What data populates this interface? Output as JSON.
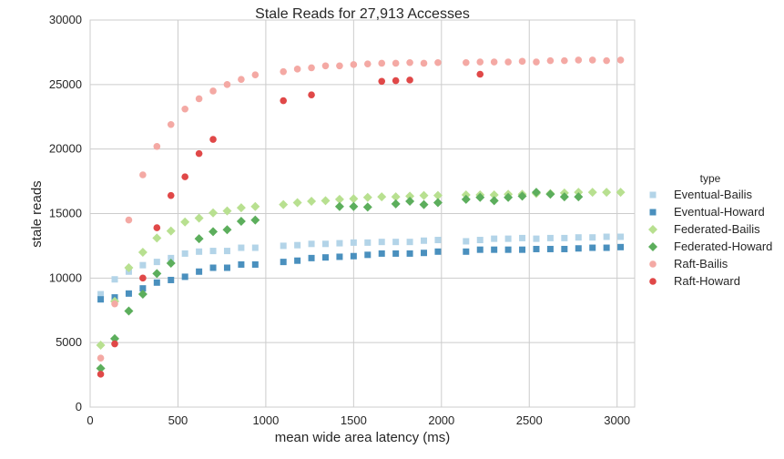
{
  "chart_data": {
    "type": "scatter",
    "title": "Stale Reads for 27,913 Accesses",
    "xlabel": "mean wide area latency (ms)",
    "ylabel": "stale reads",
    "xlim": [
      0,
      3100
    ],
    "ylim": [
      0,
      30000
    ],
    "x_ticks": [
      0,
      500,
      1000,
      1500,
      2000,
      2500,
      3000
    ],
    "y_ticks": [
      0,
      5000,
      10000,
      15000,
      20000,
      25000,
      30000
    ],
    "grid": true,
    "legend": {
      "title": "type",
      "placement": "right"
    },
    "series": [
      {
        "name": "Eventual-Bailis",
        "color": "#b3d4e8",
        "marker": "square",
        "points": [
          [
            60,
            8750
          ],
          [
            140,
            9900
          ],
          [
            220,
            10500
          ],
          [
            300,
            11000
          ],
          [
            380,
            11250
          ],
          [
            460,
            11550
          ],
          [
            540,
            11900
          ],
          [
            620,
            12050
          ],
          [
            700,
            12100
          ],
          [
            780,
            12100
          ],
          [
            860,
            12350
          ],
          [
            940,
            12350
          ],
          [
            1100,
            12500
          ],
          [
            1180,
            12550
          ],
          [
            1260,
            12650
          ],
          [
            1340,
            12650
          ],
          [
            1420,
            12700
          ],
          [
            1500,
            12750
          ],
          [
            1580,
            12750
          ],
          [
            1660,
            12800
          ],
          [
            1740,
            12800
          ],
          [
            1820,
            12800
          ],
          [
            1900,
            12900
          ],
          [
            1980,
            12950
          ],
          [
            2140,
            12850
          ],
          [
            2220,
            12950
          ],
          [
            2300,
            13050
          ],
          [
            2380,
            13050
          ],
          [
            2460,
            13100
          ],
          [
            2540,
            13050
          ],
          [
            2620,
            13100
          ],
          [
            2700,
            13100
          ],
          [
            2780,
            13150
          ],
          [
            2860,
            13150
          ],
          [
            2940,
            13200
          ],
          [
            3020,
            13200
          ]
        ]
      },
      {
        "name": "Eventual-Howard",
        "color": "#4a90be",
        "marker": "square",
        "points": [
          [
            60,
            8350
          ],
          [
            140,
            8500
          ],
          [
            220,
            8800
          ],
          [
            300,
            9200
          ],
          [
            380,
            9650
          ],
          [
            460,
            9850
          ],
          [
            540,
            10100
          ],
          [
            620,
            10500
          ],
          [
            700,
            10800
          ],
          [
            780,
            10800
          ],
          [
            860,
            11050
          ],
          [
            940,
            11050
          ],
          [
            1100,
            11250
          ],
          [
            1180,
            11350
          ],
          [
            1260,
            11550
          ],
          [
            1340,
            11600
          ],
          [
            1420,
            11650
          ],
          [
            1500,
            11700
          ],
          [
            1580,
            11800
          ],
          [
            1660,
            11900
          ],
          [
            1740,
            11900
          ],
          [
            1820,
            11900
          ],
          [
            1900,
            11950
          ],
          [
            1980,
            12050
          ],
          [
            2140,
            12050
          ],
          [
            2220,
            12200
          ],
          [
            2300,
            12200
          ],
          [
            2380,
            12200
          ],
          [
            2460,
            12200
          ],
          [
            2540,
            12250
          ],
          [
            2620,
            12250
          ],
          [
            2700,
            12250
          ],
          [
            2780,
            12300
          ],
          [
            2860,
            12350
          ],
          [
            2940,
            12350
          ],
          [
            3020,
            12400
          ]
        ]
      },
      {
        "name": "Federated-Bailis",
        "color": "#b8e090",
        "marker": "diamond",
        "points": [
          [
            60,
            4800
          ],
          [
            140,
            8200
          ],
          [
            220,
            10800
          ],
          [
            300,
            12000
          ],
          [
            380,
            13100
          ],
          [
            460,
            13650
          ],
          [
            540,
            14350
          ],
          [
            620,
            14650
          ],
          [
            700,
            15050
          ],
          [
            780,
            15200
          ],
          [
            860,
            15450
          ],
          [
            940,
            15550
          ],
          [
            1100,
            15700
          ],
          [
            1180,
            15850
          ],
          [
            1260,
            15950
          ],
          [
            1340,
            16000
          ],
          [
            1420,
            16100
          ],
          [
            1500,
            16150
          ],
          [
            1580,
            16250
          ],
          [
            1660,
            16300
          ],
          [
            1740,
            16300
          ],
          [
            1820,
            16350
          ],
          [
            1900,
            16400
          ],
          [
            1980,
            16400
          ],
          [
            2140,
            16450
          ],
          [
            2220,
            16450
          ],
          [
            2300,
            16450
          ],
          [
            2380,
            16500
          ],
          [
            2460,
            16500
          ],
          [
            2540,
            16550
          ],
          [
            2620,
            16550
          ],
          [
            2700,
            16600
          ],
          [
            2780,
            16650
          ],
          [
            2860,
            16650
          ],
          [
            2940,
            16650
          ],
          [
            3020,
            16650
          ]
        ]
      },
      {
        "name": "Federated-Howard",
        "color": "#5cae5c",
        "marker": "diamond",
        "points": [
          [
            60,
            3000
          ],
          [
            140,
            5300
          ],
          [
            220,
            7450
          ],
          [
            300,
            8750
          ],
          [
            380,
            10350
          ],
          [
            460,
            11150
          ],
          [
            620,
            13050
          ],
          [
            700,
            13600
          ],
          [
            780,
            13750
          ],
          [
            860,
            14400
          ],
          [
            940,
            14500
          ],
          [
            1420,
            15550
          ],
          [
            1500,
            15550
          ],
          [
            1580,
            15500
          ],
          [
            1740,
            15750
          ],
          [
            1820,
            15950
          ],
          [
            1900,
            15700
          ],
          [
            1980,
            15850
          ],
          [
            2140,
            16100
          ],
          [
            2220,
            16250
          ],
          [
            2300,
            16000
          ],
          [
            2380,
            16250
          ],
          [
            2460,
            16350
          ],
          [
            2540,
            16650
          ],
          [
            2620,
            16500
          ],
          [
            2700,
            16300
          ],
          [
            2780,
            16300
          ]
        ]
      },
      {
        "name": "Raft-Bailis",
        "color": "#f4a9a4",
        "marker": "circle",
        "points": [
          [
            60,
            3800
          ],
          [
            140,
            8000
          ],
          [
            220,
            14500
          ],
          [
            300,
            18000
          ],
          [
            380,
            20200
          ],
          [
            460,
            21900
          ],
          [
            540,
            23100
          ],
          [
            620,
            23900
          ],
          [
            700,
            24500
          ],
          [
            780,
            25000
          ],
          [
            860,
            25400
          ],
          [
            940,
            25750
          ],
          [
            1100,
            26000
          ],
          [
            1180,
            26200
          ],
          [
            1260,
            26300
          ],
          [
            1340,
            26450
          ],
          [
            1420,
            26450
          ],
          [
            1500,
            26550
          ],
          [
            1580,
            26600
          ],
          [
            1660,
            26650
          ],
          [
            1740,
            26650
          ],
          [
            1820,
            26700
          ],
          [
            1900,
            26650
          ],
          [
            1980,
            26700
          ],
          [
            2140,
            26700
          ],
          [
            2220,
            26750
          ],
          [
            2300,
            26750
          ],
          [
            2380,
            26750
          ],
          [
            2460,
            26800
          ],
          [
            2540,
            26750
          ],
          [
            2620,
            26850
          ],
          [
            2700,
            26850
          ],
          [
            2780,
            26900
          ],
          [
            2860,
            26900
          ],
          [
            2940,
            26850
          ],
          [
            3020,
            26900
          ]
        ]
      },
      {
        "name": "Raft-Howard",
        "color": "#e04848",
        "marker": "circle",
        "points": [
          [
            60,
            2550
          ],
          [
            140,
            4900
          ],
          [
            300,
            10000
          ],
          [
            380,
            13900
          ],
          [
            460,
            16400
          ],
          [
            540,
            17850
          ],
          [
            620,
            19650
          ],
          [
            700,
            20750
          ],
          [
            1100,
            23750
          ],
          [
            1260,
            24200
          ],
          [
            1660,
            25250
          ],
          [
            1740,
            25300
          ],
          [
            1820,
            25350
          ],
          [
            2220,
            25800
          ]
        ]
      }
    ]
  }
}
